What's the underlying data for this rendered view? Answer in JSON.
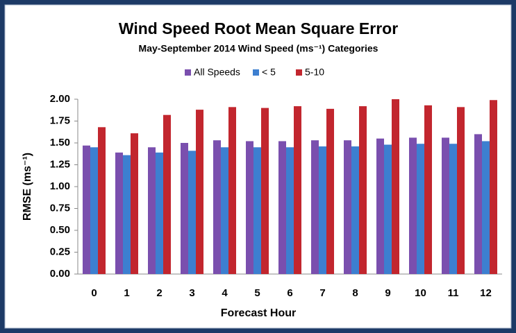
{
  "chart_data": {
    "type": "bar",
    "title": "Wind Speed Root Mean Square Error",
    "subtitle": "May-September 2014 Wind Speed (ms⁻¹) Categories",
    "x_label": "Forecast Hour",
    "y_label": "RMSE (ms⁻¹)",
    "categories": [
      "0",
      "1",
      "2",
      "3",
      "4",
      "5",
      "6",
      "7",
      "8",
      "9",
      "10",
      "11",
      "12"
    ],
    "series": [
      {
        "name": "All Speeds",
        "color": "#7a4fae",
        "values": [
          1.47,
          1.39,
          1.45,
          1.5,
          1.53,
          1.52,
          1.52,
          1.53,
          1.53,
          1.55,
          1.56,
          1.56,
          1.6
        ]
      },
      {
        "name": "< 5",
        "color": "#3d7fd0",
        "values": [
          1.45,
          1.36,
          1.39,
          1.41,
          1.45,
          1.45,
          1.45,
          1.46,
          1.46,
          1.48,
          1.49,
          1.49,
          1.52
        ]
      },
      {
        "name": "5-10",
        "color": "#c2262e",
        "values": [
          1.68,
          1.61,
          1.82,
          1.88,
          1.91,
          1.9,
          1.92,
          1.89,
          1.92,
          2.0,
          1.93,
          1.91,
          1.99
        ]
      }
    ],
    "ylim": [
      0,
      2
    ],
    "yticks": [
      {
        "value": 0,
        "label": "0.00"
      },
      {
        "value": 0.25,
        "label": "0.25"
      },
      {
        "value": 0.5,
        "label": "0.50"
      },
      {
        "value": 0.75,
        "label": "0.75"
      },
      {
        "value": 1,
        "label": "1.00"
      },
      {
        "value": 1.25,
        "label": "1.25"
      },
      {
        "value": 1.5,
        "label": "1.50"
      },
      {
        "value": 1.75,
        "label": "1.75"
      },
      {
        "value": 2,
        "label": "2.00"
      }
    ],
    "grid": false,
    "legend": "top"
  }
}
